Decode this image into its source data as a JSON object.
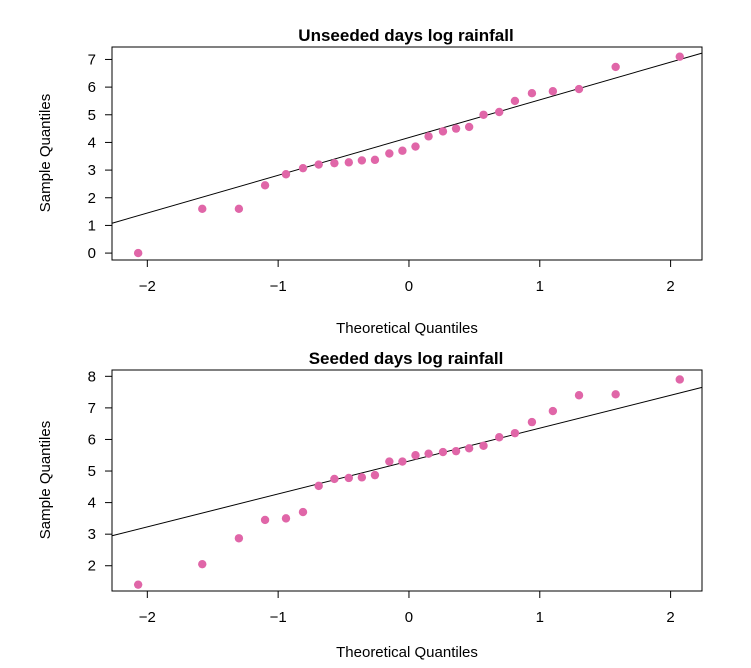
{
  "chart_data": [
    {
      "type": "scatter",
      "title": "Unseeded days log rainfall",
      "xlabel": "Theoretical Quantiles",
      "ylabel": "Sample Quantiles",
      "xlim": [
        -2.27,
        2.24
      ],
      "ylim": [
        -0.25,
        7.45
      ],
      "xticks": [
        -2,
        -1,
        0,
        1,
        2
      ],
      "yticks": [
        0,
        1,
        2,
        3,
        4,
        5,
        6,
        7
      ],
      "grid": false,
      "point_color": "#e066a8",
      "line_color": "#000000",
      "ref_line": {
        "x": [
          -2.27,
          2.24
        ],
        "y": [
          1.08,
          7.23
        ]
      },
      "x": [
        -2.07,
        -1.58,
        -1.3,
        -1.1,
        -0.94,
        -0.81,
        -0.69,
        -0.57,
        -0.46,
        -0.36,
        -0.26,
        -0.15,
        -0.05,
        0.05,
        0.15,
        0.26,
        0.36,
        0.46,
        0.57,
        0.69,
        0.81,
        0.94,
        1.1,
        1.3,
        1.58,
        2.07
      ],
      "y": [
        0.0,
        1.6,
        1.6,
        2.45,
        2.85,
        3.07,
        3.2,
        3.25,
        3.28,
        3.35,
        3.37,
        3.6,
        3.7,
        3.85,
        4.22,
        4.4,
        4.5,
        4.56,
        5.0,
        5.1,
        5.5,
        5.78,
        5.85,
        5.93,
        6.73,
        7.1
      ]
    },
    {
      "type": "scatter",
      "title": "Seeded days log rainfall",
      "xlabel": "Theoretical Quantiles",
      "ylabel": "Sample Quantiles",
      "xlim": [
        -2.27,
        2.24
      ],
      "ylim": [
        1.2,
        8.2
      ],
      "xticks": [
        -2,
        -1,
        0,
        1,
        2
      ],
      "yticks": [
        2,
        3,
        4,
        5,
        6,
        7,
        8
      ],
      "grid": false,
      "point_color": "#e066a8",
      "line_color": "#000000",
      "ref_line": {
        "x": [
          -2.27,
          2.24
        ],
        "y": [
          2.95,
          7.65
        ]
      },
      "x": [
        -2.07,
        -1.58,
        -1.3,
        -1.1,
        -0.94,
        -0.81,
        -0.69,
        -0.57,
        -0.46,
        -0.36,
        -0.26,
        -0.15,
        -0.05,
        0.05,
        0.15,
        0.26,
        0.36,
        0.46,
        0.57,
        0.69,
        0.81,
        0.94,
        1.1,
        1.3,
        1.58,
        2.07
      ],
      "y": [
        1.4,
        2.05,
        2.87,
        3.45,
        3.5,
        3.7,
        4.53,
        4.75,
        4.78,
        4.8,
        4.87,
        5.3,
        5.3,
        5.5,
        5.55,
        5.6,
        5.63,
        5.72,
        5.8,
        6.07,
        6.2,
        6.55,
        6.9,
        7.4,
        7.43,
        7.9
      ]
    }
  ]
}
